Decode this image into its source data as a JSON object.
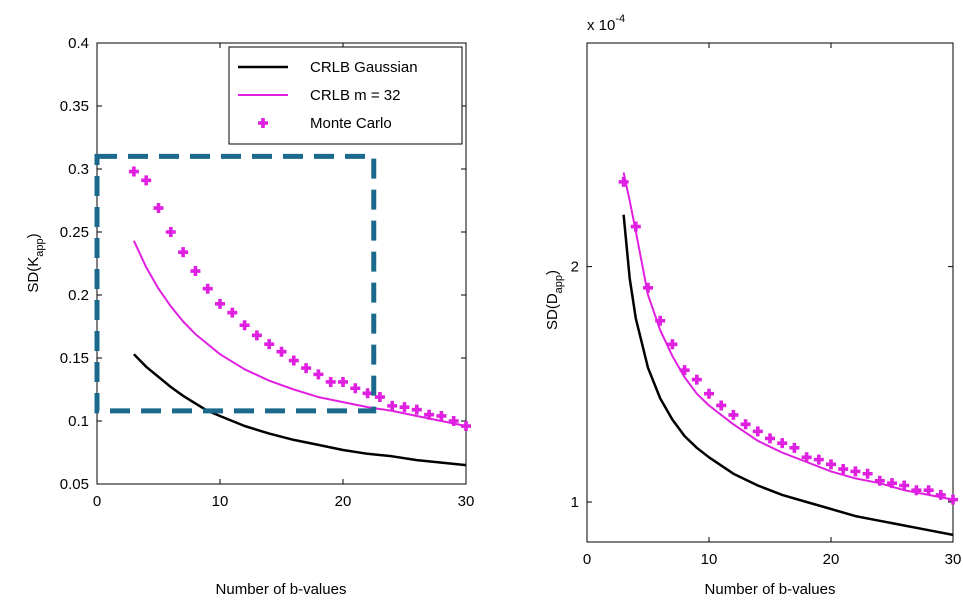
{
  "colors": {
    "gaussian": "#000000",
    "m32": "#e020e0",
    "monte_carlo": "#e020e0",
    "zoom_box": "#1b6a8e"
  },
  "chart_data": [
    {
      "type": "line",
      "xlabel": "Number of b-values",
      "ylabel_main": "SD(K",
      "ylabel_sub": "app",
      "ylabel_close": ")",
      "xlim": [
        0,
        30
      ],
      "ylim": [
        0.05,
        0.4
      ],
      "xticks": [
        0,
        10,
        20,
        30
      ],
      "xtick_labels": [
        "0",
        "10",
        "20",
        "30"
      ],
      "yticks": [
        0.05,
        0.1,
        0.15,
        0.2,
        0.25,
        0.3,
        0.35,
        0.4
      ],
      "ytick_labels": [
        "0.05",
        "0.1",
        "0.15",
        "0.2",
        "0.25",
        "0.3",
        "0.35",
        "0.4"
      ],
      "legend": {
        "placement": "top-right",
        "entries": [
          "CRLB Gaussian",
          "CRLB m = 32",
          "Monte Carlo"
        ]
      },
      "zoom_box": {
        "x": [
          0,
          22.5
        ],
        "y": [
          0.108,
          0.31
        ]
      },
      "series": [
        {
          "name": "CRLB Gaussian",
          "style": "line",
          "x": [
            3,
            4,
            5,
            6,
            7,
            8,
            9,
            10,
            12,
            14,
            16,
            18,
            20,
            22,
            24,
            26,
            28,
            30
          ],
          "y": [
            0.153,
            0.143,
            0.135,
            0.127,
            0.12,
            0.114,
            0.108,
            0.104,
            0.096,
            0.09,
            0.085,
            0.081,
            0.077,
            0.074,
            0.072,
            0.069,
            0.067,
            0.065
          ]
        },
        {
          "name": "CRLB m = 32",
          "style": "line",
          "x": [
            3,
            4,
            5,
            6,
            7,
            8,
            9,
            10,
            12,
            14,
            16,
            18,
            20,
            22,
            24,
            26,
            28,
            30
          ],
          "y": [
            0.243,
            0.222,
            0.205,
            0.191,
            0.179,
            0.169,
            0.161,
            0.153,
            0.141,
            0.132,
            0.125,
            0.119,
            0.115,
            0.111,
            0.108,
            0.104,
            0.1,
            0.096
          ]
        },
        {
          "name": "Monte Carlo",
          "style": "markers",
          "x": [
            3,
            4,
            5,
            6,
            7,
            8,
            9,
            10,
            11,
            12,
            13,
            14,
            15,
            16,
            17,
            18,
            19,
            20,
            21,
            22,
            23,
            24,
            25,
            26,
            27,
            28,
            29,
            30
          ],
          "y": [
            0.298,
            0.291,
            0.269,
            0.25,
            0.234,
            0.219,
            0.205,
            0.193,
            0.186,
            0.176,
            0.168,
            0.161,
            0.155,
            0.148,
            0.142,
            0.137,
            0.131,
            0.131,
            0.126,
            0.122,
            0.119,
            0.112,
            0.111,
            0.109,
            0.105,
            0.104,
            0.1,
            0.096
          ]
        }
      ]
    },
    {
      "type": "line",
      "xlabel": "Number of b-values",
      "ylabel_main": "SD(D",
      "ylabel_sub": "app",
      "ylabel_close": ")",
      "multiplier_label": "x 10",
      "multiplier_exp": "-4",
      "xlim": [
        0,
        30
      ],
      "ylim": [
        0.83,
        2.95
      ],
      "xticks": [
        0,
        10,
        20,
        30
      ],
      "xtick_labels": [
        "0",
        "10",
        "20",
        "30"
      ],
      "yticks": [
        1,
        2
      ],
      "ytick_labels": [
        "1",
        "2"
      ],
      "series": [
        {
          "name": "CRLB Gaussian",
          "style": "line",
          "x": [
            3,
            3.5,
            4,
            5,
            6,
            7,
            8,
            9,
            10,
            12,
            14,
            16,
            18,
            20,
            22,
            24,
            26,
            28,
            30
          ],
          "y": [
            2.22,
            1.95,
            1.78,
            1.57,
            1.44,
            1.35,
            1.28,
            1.23,
            1.19,
            1.12,
            1.07,
            1.03,
            1.0,
            0.97,
            0.94,
            0.92,
            0.9,
            0.88,
            0.86
          ]
        },
        {
          "name": "CRLB m = 32",
          "style": "line",
          "x": [
            3,
            3.5,
            4,
            5,
            6,
            7,
            8,
            9,
            10,
            12,
            14,
            16,
            18,
            20,
            22,
            24,
            26,
            28,
            30
          ],
          "y": [
            2.4,
            2.28,
            2.15,
            1.88,
            1.73,
            1.62,
            1.53,
            1.46,
            1.41,
            1.33,
            1.26,
            1.21,
            1.17,
            1.13,
            1.1,
            1.08,
            1.05,
            1.03,
            1.01
          ]
        },
        {
          "name": "Monte Carlo",
          "style": "markers",
          "x": [
            3,
            4,
            5,
            6,
            7,
            8,
            9,
            10,
            11,
            12,
            13,
            14,
            15,
            16,
            17,
            18,
            19,
            20,
            21,
            22,
            23,
            24,
            25,
            26,
            27,
            28,
            29,
            30
          ],
          "y": [
            2.36,
            2.17,
            1.91,
            1.77,
            1.67,
            1.56,
            1.52,
            1.46,
            1.41,
            1.37,
            1.33,
            1.3,
            1.27,
            1.25,
            1.23,
            1.19,
            1.18,
            1.16,
            1.14,
            1.13,
            1.12,
            1.09,
            1.08,
            1.07,
            1.05,
            1.05,
            1.03,
            1.01
          ]
        }
      ]
    }
  ]
}
